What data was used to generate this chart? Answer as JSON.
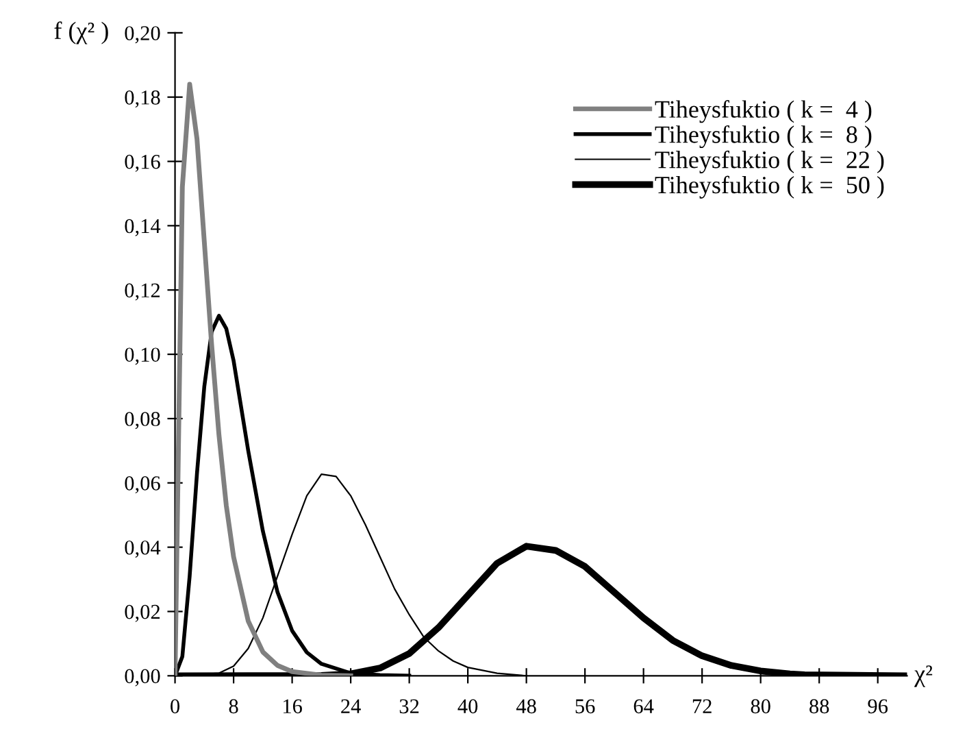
{
  "chart_data": {
    "type": "line",
    "xlabel": "χ²",
    "ylabel": "f (χ² )",
    "xlim": [
      0,
      100
    ],
    "ylim": [
      0,
      0.2
    ],
    "xticks": [
      0,
      8,
      16,
      24,
      32,
      40,
      48,
      56,
      64,
      72,
      80,
      88,
      96
    ],
    "yticks": [
      {
        "value": 0,
        "label": "0,00"
      },
      {
        "value": 0.02,
        "label": "0,02"
      },
      {
        "value": 0.04,
        "label": "0,04"
      },
      {
        "value": 0.06,
        "label": "0,06"
      },
      {
        "value": 0.08,
        "label": "0,08"
      },
      {
        "value": 0.1,
        "label": "0,10"
      },
      {
        "value": 0.12,
        "label": "0,12"
      },
      {
        "value": 0.14,
        "label": "0,14"
      },
      {
        "value": 0.16,
        "label": "0,16"
      },
      {
        "value": 0.18,
        "label": "0,18"
      },
      {
        "value": 0.2,
        "label": "0,20"
      }
    ],
    "grid": false,
    "legend": "top right",
    "marker": "none",
    "line_style": "solid",
    "series": [
      {
        "name": "Tiheysfuktio ( k =  4 )",
        "color": "#808080",
        "x": [
          0,
          1,
          2,
          3,
          4,
          5,
          6,
          7,
          8,
          10,
          12,
          14,
          16,
          20,
          24
        ],
        "values": [
          0,
          0.152,
          0.184,
          0.167,
          0.135,
          0.103,
          0.075,
          0.053,
          0.037,
          0.017,
          0.0074,
          0.0032,
          0.0013,
          0.0002,
          0
        ]
      },
      {
        "name": "Tiheysfuktio ( k =  8 )",
        "color": "#000000",
        "x": [
          0,
          1,
          2,
          3,
          4,
          5,
          6,
          7,
          8,
          9,
          10,
          12,
          14,
          16,
          18,
          20,
          24,
          28,
          32
        ],
        "values": [
          0,
          0.006,
          0.031,
          0.063,
          0.09,
          0.107,
          0.112,
          0.108,
          0.098,
          0.084,
          0.07,
          0.045,
          0.026,
          0.014,
          0.0073,
          0.0037,
          0.0008,
          0.0002,
          0
        ]
      },
      {
        "name": "Tiheysfuktio ( k =  22 )",
        "color": "#000000",
        "x": [
          0,
          6,
          8,
          10,
          12,
          14,
          16,
          18,
          20,
          22,
          24,
          26,
          28,
          30,
          32,
          34,
          36,
          38,
          40,
          44,
          48
        ],
        "values": [
          0,
          0.0008,
          0.003,
          0.0085,
          0.018,
          0.031,
          0.044,
          0.056,
          0.0627,
          0.062,
          0.056,
          0.047,
          0.037,
          0.027,
          0.019,
          0.012,
          0.0077,
          0.0046,
          0.0026,
          0.0008,
          0
        ]
      },
      {
        "name": "Tiheysfuktio ( k =  50 )",
        "color": "#000000",
        "x": [
          0,
          20,
          24,
          28,
          32,
          36,
          40,
          44,
          48,
          52,
          56,
          60,
          64,
          68,
          72,
          76,
          80,
          84,
          86,
          100
        ],
        "values": [
          0,
          0.0001,
          0.0006,
          0.0024,
          0.0069,
          0.015,
          0.025,
          0.035,
          0.0403,
          0.039,
          0.034,
          0.026,
          0.018,
          0.011,
          0.0062,
          0.0032,
          0.0015,
          0.0006,
          0.0003,
          0
        ]
      }
    ]
  }
}
